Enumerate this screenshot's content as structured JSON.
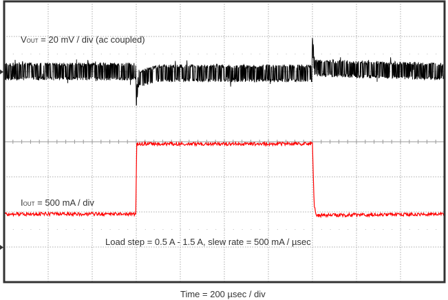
{
  "chart_data": {
    "type": "line",
    "title": "",
    "xlabel": "Time = 200 µsec / div",
    "xlim": [
      0,
      2000
    ],
    "x_unit": "µs",
    "grid": true,
    "divisions": {
      "horizontal": 10,
      "vertical": 8
    },
    "series": [
      {
        "name": "VOUT",
        "label_main": "V",
        "label_sub": "OUT",
        "label_rest": " = 20 mV / div (ac coupled)",
        "color": "#000000",
        "scale_mV_per_div": 20,
        "noise_pp_mV": 10,
        "points_mV": [
          [
            0,
            0
          ],
          [
            598,
            0
          ],
          [
            600,
            -16
          ],
          [
            610,
            -4
          ],
          [
            700,
            -1
          ],
          [
            1398,
            -1
          ],
          [
            1400,
            16
          ],
          [
            1410,
            2
          ],
          [
            2000,
            0
          ]
        ]
      },
      {
        "name": "IOUT",
        "label_main": "I",
        "label_sub": "OUT",
        "label_rest": " = 500 mA / div",
        "color": "#ff0000",
        "scale_mA_per_div": 500,
        "points_A": [
          [
            0,
            0.5
          ],
          [
            598,
            0.5
          ],
          [
            602,
            1.5
          ],
          [
            1400,
            1.5
          ],
          [
            1408,
            0.6
          ],
          [
            1420,
            0.48
          ],
          [
            2000,
            0.5
          ]
        ]
      }
    ],
    "annotation": "Load step = 0.5 A - 1.5 A, slew rate = 500 mA / µsec"
  }
}
